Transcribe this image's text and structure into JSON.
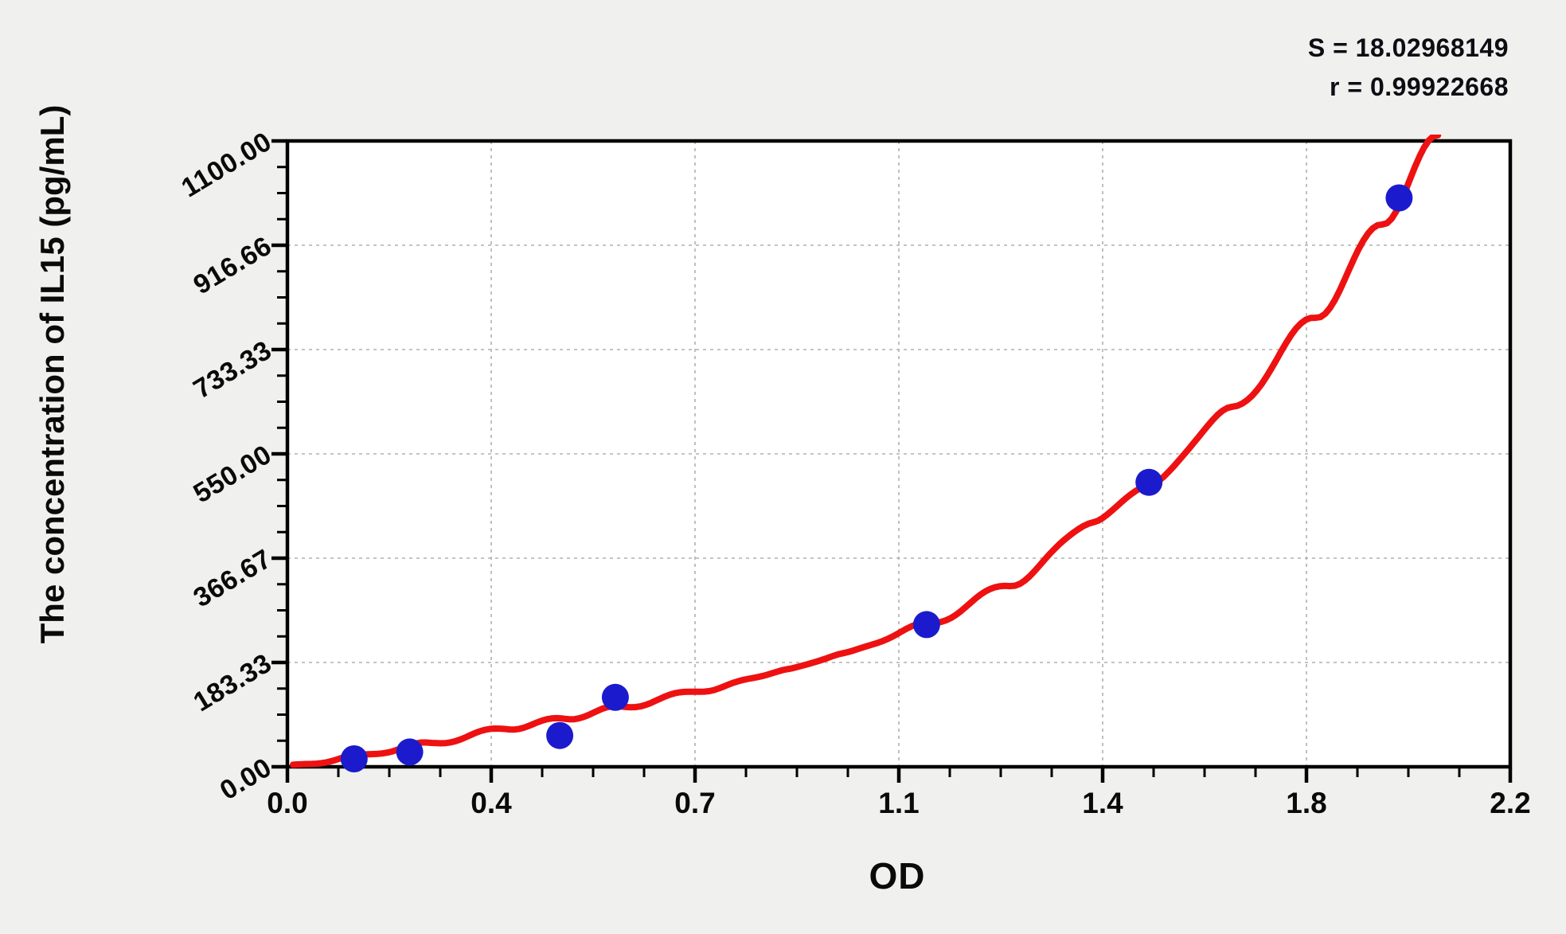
{
  "chart_data": {
    "type": "scatter",
    "xlabel": "OD",
    "ylabel": "The concentration of IL15 (pg/mL)",
    "annotations": {
      "s_stat": "S = 18.02968149",
      "r_stat": "r = 0.99922668"
    },
    "x_axis": {
      "min": 0.0,
      "max": 2.2,
      "tick_labels": [
        "0.0",
        "0.4",
        "0.7",
        "1.1",
        "1.4",
        "1.8",
        "2.2"
      ],
      "minor_ticks_between_major": 3
    },
    "y_axis": {
      "min": 0.0,
      "max": 1100.0,
      "tick_labels": [
        "0.00",
        "183.33",
        "366.67",
        "550.00",
        "733.33",
        "916.66",
        "1100.00"
      ],
      "minor_ticks_between_major": 3
    },
    "grid": "dashed major gridlines",
    "points": [
      {
        "od": 0.12,
        "conc": 14
      },
      {
        "od": 0.22,
        "conc": 26
      },
      {
        "od": 0.49,
        "conc": 55
      },
      {
        "od": 0.59,
        "conc": 122
      },
      {
        "od": 1.15,
        "conc": 250
      },
      {
        "od": 1.55,
        "conc": 500
      },
      {
        "od": 2.0,
        "conc": 1000
      }
    ],
    "fit_curve": {
      "description": "exponential-like standard curve fit, read from plot",
      "samples": [
        {
          "od": 0.01,
          "conc": 1
        },
        {
          "od": 0.12,
          "conc": 18
        },
        {
          "od": 0.25,
          "conc": 40
        },
        {
          "od": 0.4,
          "conc": 68
        },
        {
          "od": 0.5,
          "conc": 85
        },
        {
          "od": 0.6,
          "conc": 105
        },
        {
          "od": 0.75,
          "conc": 135
        },
        {
          "od": 0.9,
          "conc": 170
        },
        {
          "od": 1.0,
          "conc": 200
        },
        {
          "od": 1.15,
          "conc": 250
        },
        {
          "od": 1.3,
          "conc": 320
        },
        {
          "od": 1.45,
          "conc": 430
        },
        {
          "od": 1.55,
          "conc": 497
        },
        {
          "od": 1.7,
          "conc": 630
        },
        {
          "od": 1.85,
          "conc": 790
        },
        {
          "od": 1.97,
          "conc": 955
        },
        {
          "od": 2.07,
          "conc": 1110
        }
      ]
    },
    "colors": {
      "curve": "#ee1111",
      "points": "#1b1bcd",
      "grid": "#b0b0b0",
      "axis": "#000000",
      "plot_bg": "#ffffff",
      "page_bg": "#f0f0ee",
      "text": "#0a0a0a"
    }
  }
}
